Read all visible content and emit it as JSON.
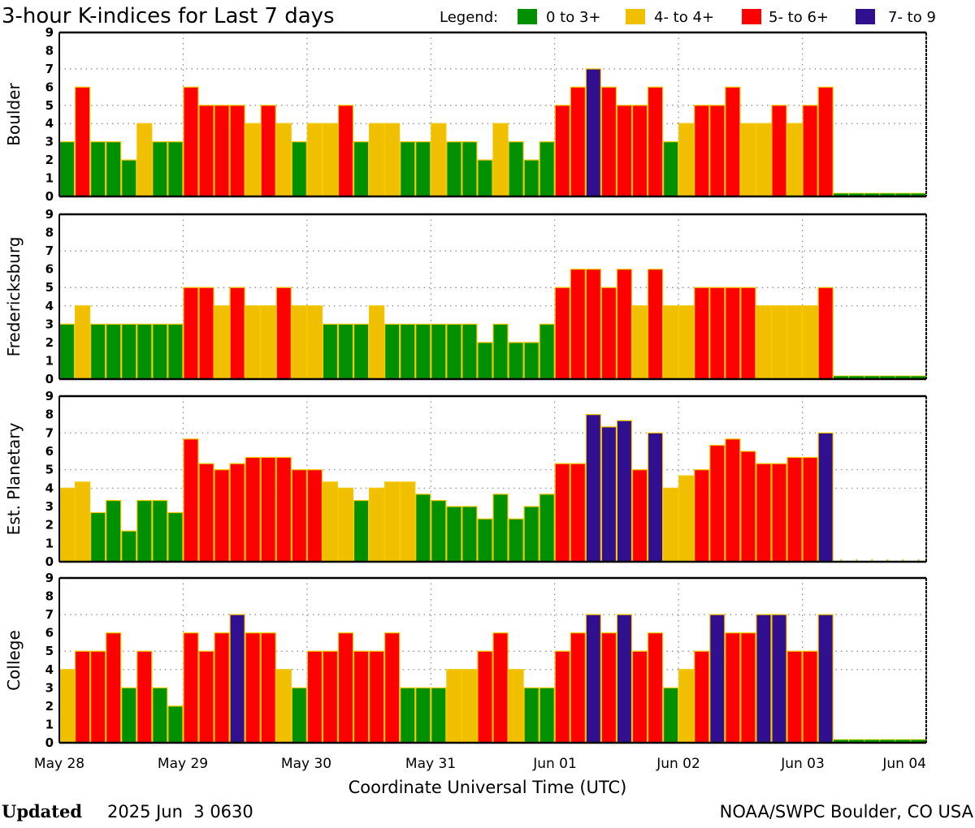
{
  "chart_data": {
    "type": "bar",
    "title": "3-hour K-indices for Last 7 days",
    "legend": {
      "label": "Legend:",
      "placement": "top-right",
      "entries": [
        {
          "label": "0 to 3+",
          "color": "#009000",
          "min": 0,
          "max": 3.99
        },
        {
          "label": "4- to 4+",
          "color": "#f0c000",
          "min": 4,
          "max": 4.99
        },
        {
          "label": "5- to 6+",
          "color": "#ff0000",
          "min": 5,
          "max": 6.99
        },
        {
          "label": "7- to 9",
          "color": "#30108f",
          "min": 7,
          "max": 9
        }
      ]
    },
    "xlabel": "Coordinate Universal Time (UTC)",
    "x_tick_labels": [
      "May 28",
      "May 29",
      "May 30",
      "May 31",
      "Jun 01",
      "Jun 02",
      "Jun 03",
      "Jun 04"
    ],
    "bars_per_day": 8,
    "ylim": [
      0,
      9
    ],
    "y_ticks": [
      "0",
      "1",
      "2",
      "3",
      "4",
      "5",
      "6",
      "7",
      "8",
      "9"
    ],
    "grid": true,
    "series": [
      {
        "name": "Boulder",
        "values": [
          3,
          6,
          3,
          3,
          2,
          4,
          3,
          3,
          6,
          5,
          5,
          5,
          4,
          5,
          4,
          3,
          4,
          4,
          5,
          3,
          4,
          4,
          3,
          3,
          4,
          3,
          3,
          2,
          4,
          3,
          2,
          3,
          5,
          6,
          7,
          6,
          5,
          5,
          6,
          3,
          4,
          5,
          5,
          6,
          4,
          4,
          5,
          4,
          5,
          6,
          0,
          0,
          0,
          0,
          0,
          0
        ]
      },
      {
        "name": "Fredericksburg",
        "values": [
          3,
          4,
          3,
          3,
          3,
          3,
          3,
          3,
          5,
          5,
          4,
          5,
          4,
          4,
          5,
          4,
          4,
          3,
          3,
          3,
          4,
          3,
          3,
          3,
          3,
          3,
          3,
          2,
          3,
          2,
          2,
          3,
          5,
          6,
          6,
          5,
          6,
          4,
          6,
          4,
          4,
          5,
          5,
          5,
          5,
          4,
          4,
          4,
          4,
          5,
          0,
          0,
          0,
          0,
          0,
          0
        ]
      },
      {
        "name": "Est. Planetary",
        "values": [
          4.0,
          4.33,
          2.67,
          3.33,
          1.67,
          3.33,
          3.33,
          2.67,
          6.67,
          5.33,
          5.0,
          5.33,
          5.67,
          5.67,
          5.67,
          5.0,
          5.0,
          4.33,
          4.0,
          3.33,
          4.0,
          4.33,
          4.33,
          3.67,
          3.33,
          3.0,
          3.0,
          2.33,
          3.67,
          2.33,
          3.0,
          3.67,
          5.33,
          5.33,
          8.0,
          7.33,
          7.67,
          5.0,
          7.0,
          4.0,
          4.67,
          5.0,
          6.33,
          6.67,
          6.0,
          5.33,
          5.33,
          5.67,
          5.67,
          7.0,
          null,
          null,
          null,
          null,
          null,
          null
        ]
      },
      {
        "name": "College",
        "values": [
          4,
          5,
          5,
          6,
          3,
          5,
          3,
          2,
          6,
          5,
          6,
          7,
          6,
          6,
          4,
          3,
          5,
          5,
          6,
          5,
          5,
          6,
          3,
          3,
          3,
          4,
          4,
          5,
          6,
          4,
          3,
          3,
          5,
          6,
          7,
          6,
          7,
          5,
          6,
          3,
          4,
          5,
          7,
          6,
          6,
          7,
          7,
          5,
          5,
          7,
          0,
          0,
          0,
          0,
          0,
          0
        ]
      }
    ]
  },
  "footer": {
    "updated_label": "Updated",
    "updated_value": "2025 Jun  3 0630",
    "source": "NOAA/SWPC Boulder, CO USA"
  }
}
